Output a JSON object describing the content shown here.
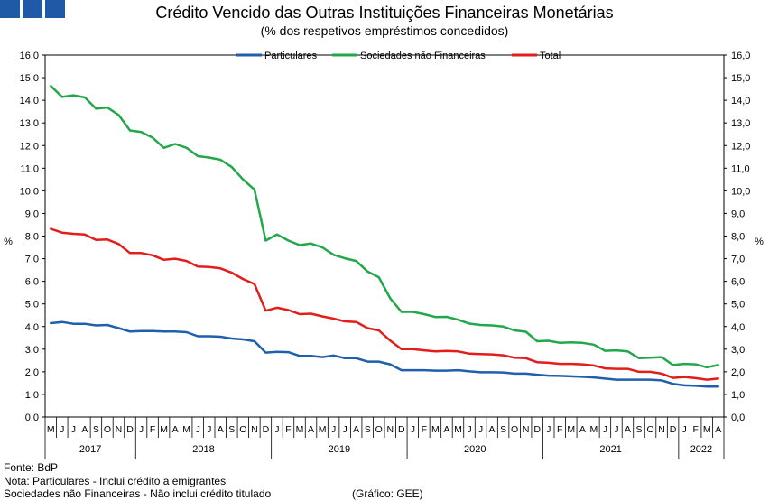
{
  "header": {
    "title": "Crédito Vencido das Outras Instituições Financeiras Monetárias",
    "subtitle": "(% dos respetivos empréstimos concedidos)"
  },
  "footer": {
    "source": "Fonte: BdP",
    "note1": "Nota: Particulares - Inclui crédito a emigrantes",
    "note2": "Sociedades não Financeiras - Não inclui crédito titulado",
    "credit": "(Gráfico: GEE)"
  },
  "chart_data": {
    "type": "line",
    "title": "Crédito Vencido das Outras Instituições Financeiras Monetárias",
    "subtitle": "(% dos respetivos empréstimos concedidos)",
    "ylabel": "%",
    "ylabel_right": "%",
    "ylim": [
      0,
      16
    ],
    "y_ticks": [
      "0,0",
      "1,0",
      "2,0",
      "3,0",
      "4,0",
      "5,0",
      "6,0",
      "7,0",
      "8,0",
      "9,0",
      "10,0",
      "11,0",
      "12,0",
      "13,0",
      "14,0",
      "15,0",
      "16,0"
    ],
    "grid": false,
    "legend_position": "top",
    "x": [
      "M",
      "J",
      "J",
      "A",
      "S",
      "O",
      "N",
      "D",
      "J",
      "F",
      "M",
      "A",
      "M",
      "J",
      "J",
      "A",
      "S",
      "O",
      "N",
      "D",
      "J",
      "F",
      "M",
      "A",
      "M",
      "J",
      "J",
      "A",
      "S",
      "O",
      "N",
      "D",
      "J",
      "F",
      "M",
      "A",
      "M",
      "J",
      "J",
      "A",
      "S",
      "O",
      "N",
      "D",
      "J",
      "F",
      "M",
      "A",
      "M",
      "J",
      "J",
      "A",
      "S",
      "O",
      "N",
      "D",
      "J",
      "F",
      "M",
      "A"
    ],
    "years": [
      {
        "label": "2017",
        "start": 0,
        "end": 8
      },
      {
        "label": "2018",
        "start": 8,
        "end": 20
      },
      {
        "label": "2019",
        "start": 20,
        "end": 32
      },
      {
        "label": "2020",
        "start": 32,
        "end": 44
      },
      {
        "label": "2021",
        "start": 44,
        "end": 56
      },
      {
        "label": "2022",
        "start": 56,
        "end": 60
      }
    ],
    "series": [
      {
        "name": "Particulares",
        "color": "#1f5fad",
        "values": [
          4.15,
          4.2,
          4.12,
          4.12,
          4.05,
          4.07,
          3.93,
          3.78,
          3.8,
          3.8,
          3.78,
          3.78,
          3.75,
          3.57,
          3.57,
          3.55,
          3.47,
          3.43,
          3.35,
          2.85,
          2.88,
          2.87,
          2.7,
          2.7,
          2.65,
          2.72,
          2.6,
          2.6,
          2.45,
          2.45,
          2.33,
          2.07,
          2.07,
          2.07,
          2.05,
          2.05,
          2.07,
          2.02,
          1.98,
          1.98,
          1.97,
          1.92,
          1.92,
          1.87,
          1.83,
          1.82,
          1.8,
          1.78,
          1.75,
          1.7,
          1.65,
          1.65,
          1.65,
          1.65,
          1.62,
          1.47,
          1.4,
          1.38,
          1.35,
          1.35
        ]
      },
      {
        "name": "Sociedades não Financeiras",
        "color": "#22a84a",
        "values": [
          14.63,
          14.15,
          14.22,
          14.13,
          13.63,
          13.68,
          13.35,
          12.67,
          12.6,
          12.35,
          11.9,
          12.07,
          11.9,
          11.53,
          11.47,
          11.37,
          11.05,
          10.5,
          10.05,
          7.8,
          8.07,
          7.8,
          7.6,
          7.67,
          7.5,
          7.17,
          7.02,
          6.9,
          6.43,
          6.18,
          5.25,
          4.65,
          4.65,
          4.55,
          4.42,
          4.43,
          4.3,
          4.13,
          4.07,
          4.05,
          4.0,
          3.83,
          3.77,
          3.35,
          3.37,
          3.28,
          3.3,
          3.28,
          3.2,
          2.93,
          2.95,
          2.9,
          2.6,
          2.62,
          2.65,
          2.3,
          2.35,
          2.33,
          2.2,
          2.3
        ]
      },
      {
        "name": "Total",
        "color": "#e31c1c",
        "values": [
          8.32,
          8.15,
          8.1,
          8.07,
          7.83,
          7.85,
          7.65,
          7.25,
          7.25,
          7.15,
          6.95,
          7.0,
          6.9,
          6.65,
          6.63,
          6.57,
          6.38,
          6.1,
          5.88,
          4.7,
          4.83,
          4.73,
          4.55,
          4.57,
          4.45,
          4.35,
          4.23,
          4.2,
          3.93,
          3.83,
          3.38,
          3.0,
          3.0,
          2.95,
          2.9,
          2.92,
          2.9,
          2.8,
          2.78,
          2.77,
          2.73,
          2.62,
          2.6,
          2.42,
          2.4,
          2.35,
          2.35,
          2.33,
          2.28,
          2.15,
          2.13,
          2.13,
          2.0,
          2.0,
          1.92,
          1.73,
          1.77,
          1.72,
          1.65,
          1.7
        ]
      }
    ]
  }
}
